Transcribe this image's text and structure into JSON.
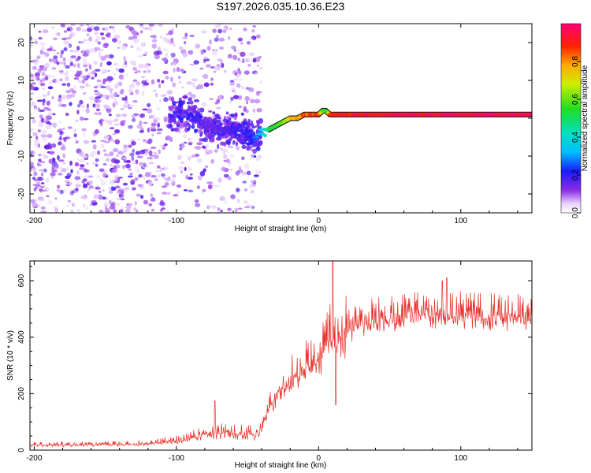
{
  "title": "S197.2026.035.10.36.E23",
  "chart_data": [
    {
      "type": "heatmap",
      "name": "spectrogram",
      "xlabel": "Height of straight line (km)",
      "ylabel": "Frequency (Hz)",
      "xlim": [
        -203,
        150
      ],
      "ylim": [
        -25,
        25
      ],
      "xticks": [
        -200,
        -100,
        0,
        100
      ],
      "yticks": [
        -20,
        -10,
        0,
        10,
        20
      ],
      "colorbar": {
        "label": "Normalized spectral amplitude",
        "range": [
          0,
          1
        ],
        "ticks": [
          "0.0",
          "0.2",
          "0.4",
          "0.6",
          "0.8"
        ],
        "tick_values": [
          0.0,
          0.2,
          0.4,
          0.6,
          0.8
        ]
      },
      "ridge_line": {
        "description": "dominant frequency track",
        "x": [
          -90,
          -80,
          -70,
          -60,
          -50,
          -45,
          -40,
          -35,
          -30,
          -25,
          -20,
          -15,
          -10,
          -5,
          0,
          3,
          5,
          8,
          10,
          20,
          40,
          60,
          80,
          100,
          120,
          150
        ],
        "y": [
          1,
          -2,
          -3,
          -3,
          -4,
          -5,
          -4,
          -3,
          -2,
          -1,
          0,
          0,
          1,
          1,
          1,
          2,
          2,
          1,
          1,
          1,
          1,
          1,
          1,
          1,
          1,
          1
        ],
        "amplitude": [
          0.2,
          0.15,
          0.15,
          0.18,
          0.2,
          0.25,
          0.35,
          0.5,
          0.55,
          0.6,
          0.75,
          0.8,
          0.85,
          0.88,
          0.9,
          0.6,
          0.5,
          0.85,
          0.9,
          0.92,
          0.93,
          0.95,
          0.95,
          0.97,
          0.97,
          0.95
        ]
      }
    },
    {
      "type": "line",
      "name": "snr",
      "xlabel": "Height of straight line (km)",
      "ylabel": "SNR (10 * v/v)",
      "xlim": [
        -203,
        150
      ],
      "ylim": [
        0,
        670
      ],
      "xticks": [
        -200,
        -100,
        0,
        100
      ],
      "yticks": [
        0,
        200,
        400,
        600
      ],
      "color": "#e8312a",
      "envelope": {
        "x": [
          -203,
          -150,
          -120,
          -100,
          -80,
          -60,
          -45,
          -40,
          -35,
          -30,
          -20,
          -10,
          0,
          5,
          10,
          15,
          20,
          30,
          40,
          60,
          80,
          100,
          120,
          150
        ],
        "y": [
          20,
          22,
          25,
          35,
          60,
          70,
          60,
          80,
          150,
          210,
          270,
          310,
          340,
          400,
          420,
          430,
          440,
          460,
          480,
          490,
          500,
          495,
          490,
          485
        ]
      },
      "spikes": [
        {
          "x": -73,
          "y": 175
        },
        {
          "x": 10,
          "y": 670
        },
        {
          "x": 12,
          "y": 160
        },
        {
          "x": 90,
          "y": 610
        },
        {
          "x": 87,
          "y": 600
        }
      ]
    }
  ]
}
